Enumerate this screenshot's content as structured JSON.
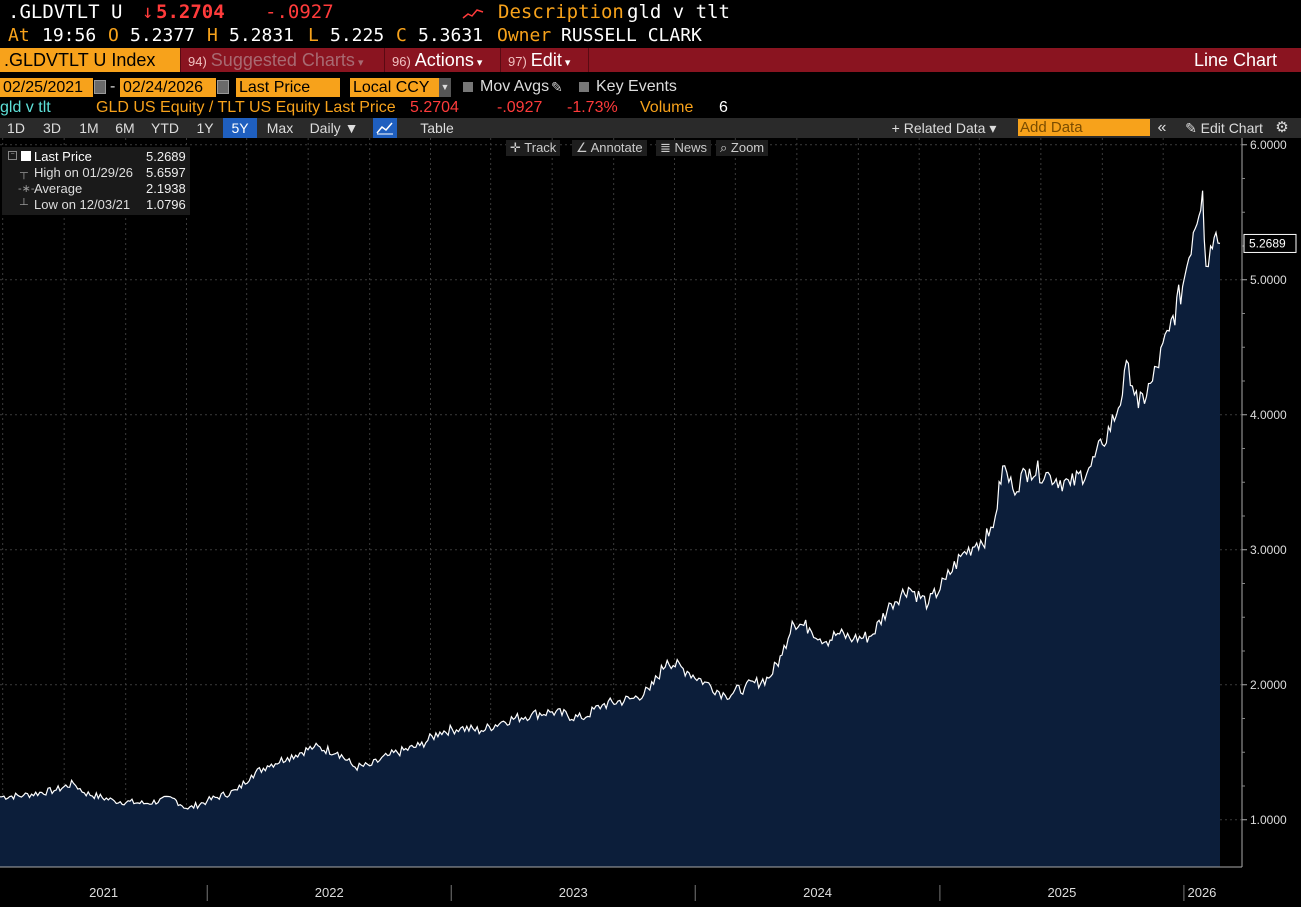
{
  "header": {
    "ticker": ".GLDVTLT U",
    "last_arrow": "↓",
    "last": "5.2704",
    "change": "-.0927",
    "description_label": "Description",
    "description": "gld v tlt",
    "at_label": "At",
    "time": "19:56",
    "o_label": "O",
    "open": "5.2377",
    "h_label": "H",
    "high": "5.2831",
    "l_label": "L",
    "low": "5.225",
    "c_label": "C",
    "close": "5.3631",
    "owner_label": "Owner",
    "owner": "RUSSELL CLARK"
  },
  "menubar": {
    "index_tab": ".GLDVTLT U Index",
    "suggested_num": "94)",
    "suggested": "Suggested Charts",
    "actions_num": "96)",
    "actions": "Actions",
    "edit_num": "97)",
    "edit": "Edit",
    "chart_type": "Line Chart"
  },
  "settings": {
    "start_date": "02/25/2021",
    "dash": "-",
    "end_date": "02/24/2026",
    "field": "Last Price",
    "currency": "Local CCY",
    "mov_avgs": "Mov Avgs",
    "key_events": "Key Events"
  },
  "legend": {
    "name": "gld v tlt",
    "security": "GLD US Equity / TLT US Equity Last Price",
    "last": "5.2704",
    "change": "-.0927",
    "pct": "-1.73%",
    "volume_label": "Volume",
    "volume": "6"
  },
  "toolbar": {
    "periods": [
      "1D",
      "3D",
      "1M",
      "6M",
      "YTD",
      "1Y",
      "5Y",
      "Max"
    ],
    "active_period": "5Y",
    "frequency": "Daily ▼",
    "table": "Table",
    "related_data": "+ Related Data ▾",
    "add_data_placeholder": "Add Data",
    "collapse": "«",
    "edit_chart": "✎ Edit Chart"
  },
  "chart_tools": {
    "track": "Track",
    "annotate": "Annotate",
    "news": "News",
    "zoom": "Zoom"
  },
  "stats": {
    "last_price_label": "Last Price",
    "last_price": "5.2689",
    "high_label": "High on 01/29/26",
    "high": "5.6597",
    "average_label": "Average",
    "average": "2.1938",
    "low_label": "Low on 12/03/21",
    "low": "1.0796"
  },
  "colors": {
    "accent": "#f7a21b",
    "menubar": "#8a1420",
    "negative": "#ff3b3b",
    "area_fill": "#0c1e3a",
    "line": "#ffffff"
  },
  "chart_data": {
    "type": "area",
    "title": "",
    "ylabel": "",
    "xlabel": "",
    "ylim": [
      0.65,
      6.05
    ],
    "yticks": [
      "1.0000",
      "2.0000",
      "3.0000",
      "4.0000",
      "5.0000",
      "6.0000"
    ],
    "x_labels": [
      "2021",
      "2022",
      "2023",
      "2024",
      "2025",
      "2026"
    ],
    "last_value_label": "5.2689",
    "grid": true,
    "series": [
      {
        "values": [
          [
            "2021-02-25",
            1.17
          ],
          [
            "2021-04-01",
            1.18
          ],
          [
            "2021-05-20",
            1.22
          ],
          [
            "2021-06-15",
            1.27
          ],
          [
            "2021-07-01",
            1.2
          ],
          [
            "2021-08-15",
            1.14
          ],
          [
            "2021-10-01",
            1.12
          ],
          [
            "2021-11-10",
            1.16
          ],
          [
            "2021-12-03",
            1.08
          ],
          [
            "2022-01-01",
            1.14
          ],
          [
            "2022-02-15",
            1.22
          ],
          [
            "2022-03-08",
            1.33
          ],
          [
            "2022-04-01",
            1.4
          ],
          [
            "2022-05-01",
            1.46
          ],
          [
            "2022-06-10",
            1.54
          ],
          [
            "2022-07-15",
            1.5
          ],
          [
            "2022-08-10",
            1.39
          ],
          [
            "2022-09-01",
            1.4
          ],
          [
            "2022-10-01",
            1.48
          ],
          [
            "2022-11-15",
            1.55
          ],
          [
            "2022-12-15",
            1.65
          ],
          [
            "2023-01-15",
            1.68
          ],
          [
            "2023-02-15",
            1.66
          ],
          [
            "2023-03-20",
            1.73
          ],
          [
            "2023-05-01",
            1.78
          ],
          [
            "2023-06-01",
            1.8
          ],
          [
            "2023-07-15",
            1.75
          ],
          [
            "2023-08-15",
            1.85
          ],
          [
            "2023-10-01",
            1.9
          ],
          [
            "2023-10-25",
            1.96
          ],
          [
            "2023-11-20",
            2.18
          ],
          [
            "2023-12-20",
            2.1
          ],
          [
            "2024-01-15",
            2.02
          ],
          [
            "2024-02-15",
            1.92
          ],
          [
            "2024-03-15",
            1.98
          ],
          [
            "2024-04-20",
            2.05
          ],
          [
            "2024-05-10",
            2.22
          ],
          [
            "2024-05-25",
            2.47
          ],
          [
            "2024-06-20",
            2.42
          ],
          [
            "2024-07-15",
            2.32
          ],
          [
            "2024-08-01",
            2.38
          ],
          [
            "2024-08-25",
            2.34
          ],
          [
            "2024-09-20",
            2.36
          ],
          [
            "2024-10-20",
            2.6
          ],
          [
            "2024-11-15",
            2.72
          ],
          [
            "2024-12-15",
            2.6
          ],
          [
            "2025-01-10",
            2.78
          ],
          [
            "2025-02-01",
            2.95
          ],
          [
            "2025-02-25",
            3.05
          ],
          [
            "2025-03-15",
            3.1
          ],
          [
            "2025-03-25",
            3.25
          ],
          [
            "2025-04-05",
            3.62
          ],
          [
            "2025-04-20",
            3.45
          ],
          [
            "2025-05-15",
            3.6
          ],
          [
            "2025-06-15",
            3.55
          ],
          [
            "2025-07-15",
            3.48
          ],
          [
            "2025-08-15",
            3.62
          ],
          [
            "2025-09-01",
            3.78
          ],
          [
            "2025-09-25",
            4.05
          ],
          [
            "2025-10-10",
            4.38
          ],
          [
            "2025-10-25",
            4.05
          ],
          [
            "2025-11-15",
            4.25
          ],
          [
            "2025-12-10",
            4.62
          ],
          [
            "2025-12-30",
            4.95
          ],
          [
            "2026-01-15",
            5.35
          ],
          [
            "2026-01-29",
            5.6597
          ],
          [
            "2026-02-03",
            5.1
          ],
          [
            "2026-02-10",
            5.25
          ],
          [
            "2026-02-18",
            5.35
          ],
          [
            "2026-02-24",
            5.2689
          ]
        ]
      }
    ]
  }
}
